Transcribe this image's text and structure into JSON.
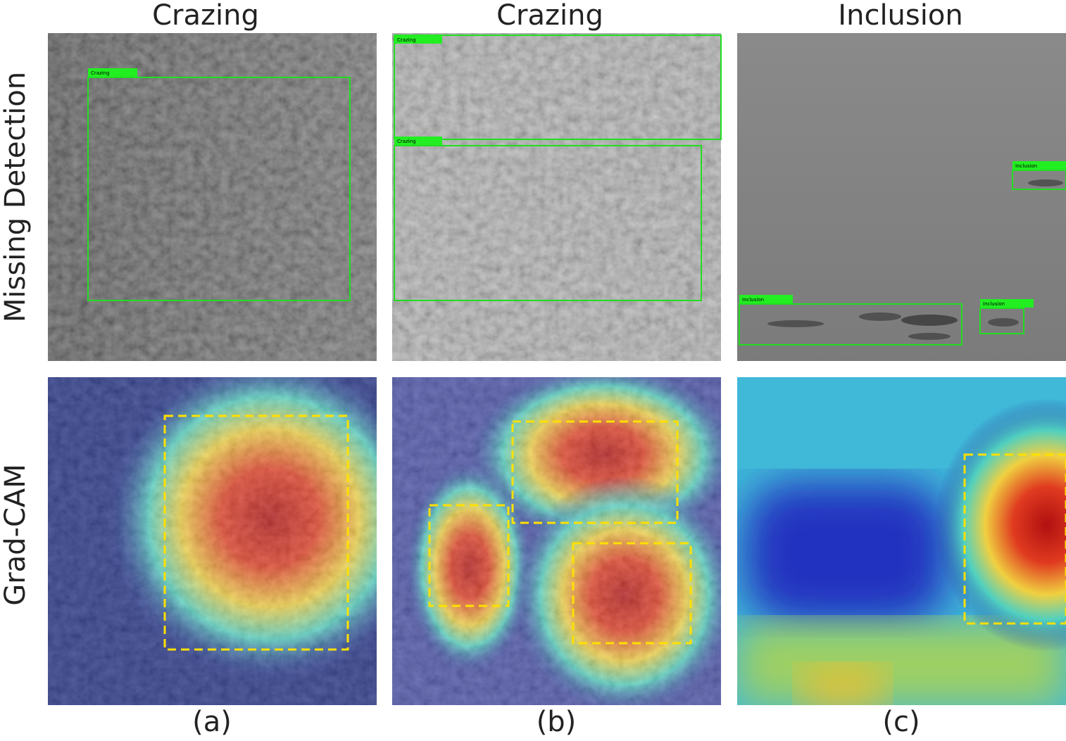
{
  "columns": [
    {
      "title": "Crazing",
      "label": "(a)",
      "detections": [
        "Crazing"
      ]
    },
    {
      "title": "Crazing",
      "label": "(b)",
      "detections": [
        "Crazing",
        "Crazing"
      ]
    },
    {
      "title": "Inclusion",
      "label": "(c)",
      "detections": [
        "Inclusion",
        "Inclusion",
        "Inclusion"
      ]
    }
  ],
  "rows": [
    "Missing Detection",
    "Grad-CAM"
  ]
}
